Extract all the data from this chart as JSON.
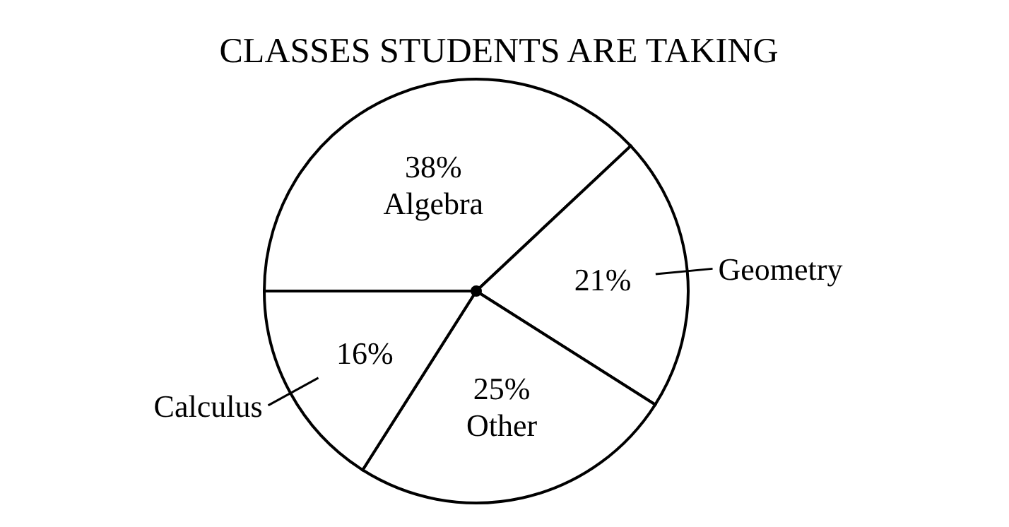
{
  "chart_data": {
    "type": "pie",
    "title": "CLASSES STUDENTS ARE TAKING",
    "categories": [
      "Algebra",
      "Geometry",
      "Other",
      "Calculus"
    ],
    "values": [
      38,
      21,
      25,
      16
    ],
    "value_labels": [
      "38%",
      "21%",
      "25%",
      "16%"
    ],
    "colors": [
      "#ffffff",
      "#ffffff",
      "#ffffff",
      "#ffffff"
    ]
  }
}
